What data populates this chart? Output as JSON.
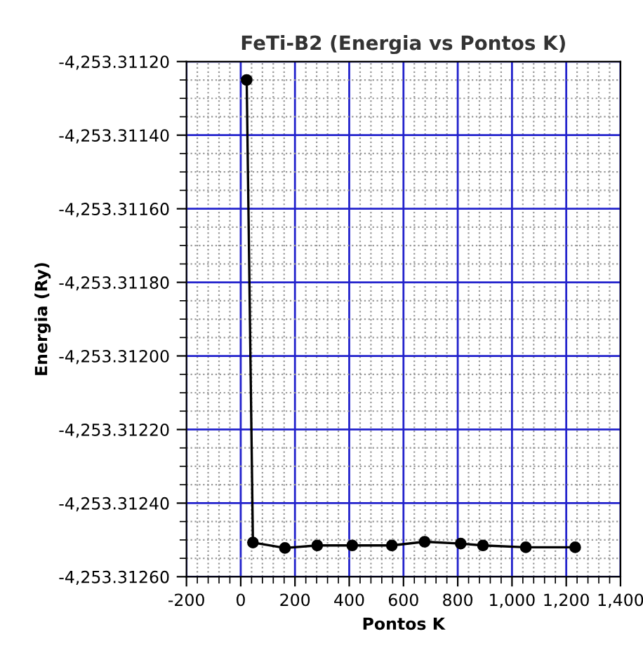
{
  "chart_data": {
    "type": "line",
    "title": "FeTi-B2 (Energia vs Pontos K)",
    "xlabel": "Pontos K",
    "ylabel": "Energia (Ry)",
    "x": [
      22,
      45,
      163,
      282,
      411,
      557,
      678,
      811,
      893,
      1051,
      1233
    ],
    "series": [
      {
        "color": "#000000",
        "values": [
          -4253.31125,
          -4253.312507,
          -4253.312522,
          -4253.312515,
          -4253.312515,
          -4253.312515,
          -4253.312505,
          -4253.31251,
          -4253.312515,
          -4253.31252,
          -4253.31252
        ]
      }
    ],
    "marker": "circle",
    "line_style": "solid",
    "grid": true,
    "xlim": [
      -200,
      1400
    ],
    "xticks": [
      {
        "value": -200,
        "label": "-200"
      },
      0,
      200,
      400,
      600,
      800,
      {
        "value": 1000,
        "label": "1,000"
      },
      {
        "value": 1200,
        "label": "1,200"
      },
      {
        "value": 1400,
        "label": "1,400"
      }
    ],
    "ylim": [
      -4253.3126,
      -4253.3112
    ],
    "yticks": [
      {
        "value": -4253.3126,
        "label": "-4,253.31260"
      },
      {
        "value": -4253.3124,
        "label": "-4,253.31240"
      },
      {
        "value": -4253.3122,
        "label": "-4,253.31220"
      },
      {
        "value": -4253.312,
        "label": "-4,253.31200"
      },
      {
        "value": -4253.3118,
        "label": "-4,253.31180"
      },
      {
        "value": -4253.3116,
        "label": "-4,253.31160"
      },
      {
        "value": -4253.3114,
        "label": "-4,253.31140"
      },
      {
        "value": -4253.3112,
        "label": "-4,253.31120"
      }
    ]
  }
}
